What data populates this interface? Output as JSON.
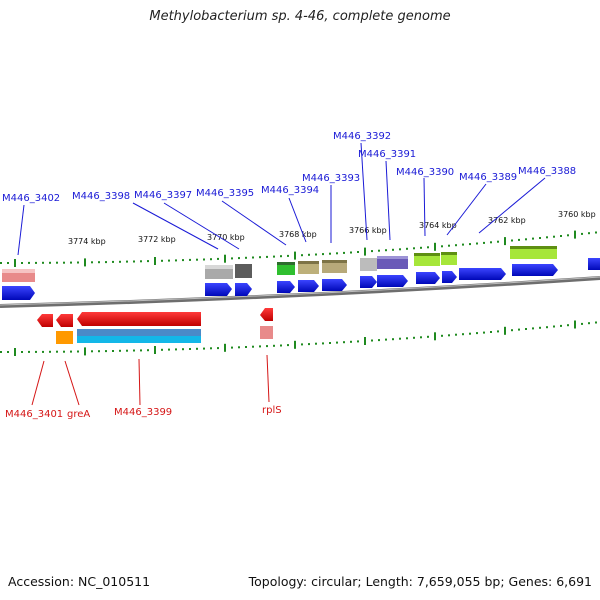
{
  "header": {
    "title": "Methylobacterium sp. 4-46, complete genome"
  },
  "footer": {
    "accession": "Accession: NC_010511",
    "topology": "Topology: circular; Length: 7,659,055 bp; Genes: 6,691"
  },
  "scale_labels": [
    "3774 kbp",
    "3772 kbp",
    "3770 kbp",
    "3768 kbp",
    "3766 kbp",
    "3764 kbp",
    "3762 kbp",
    "3760 kbp"
  ],
  "forward_labels": [
    "M446_3402",
    "M446_3398",
    "M446_3397",
    "M446_3395",
    "M446_3394",
    "M446_3393",
    "M446_3392",
    "M446_3391",
    "M446_3390",
    "M446_3389",
    "M446_3388"
  ],
  "reverse_labels": [
    "M446_3401",
    "greA",
    "M446_3399",
    "rplS"
  ],
  "colors": {
    "forward_label": "#1a1ad6",
    "reverse_label": "#d51616",
    "cds": "#0a14e6",
    "reverse_cds": "#e60c0c",
    "tick": "#1f8a1f",
    "backbone": "#7a7a7a"
  }
}
